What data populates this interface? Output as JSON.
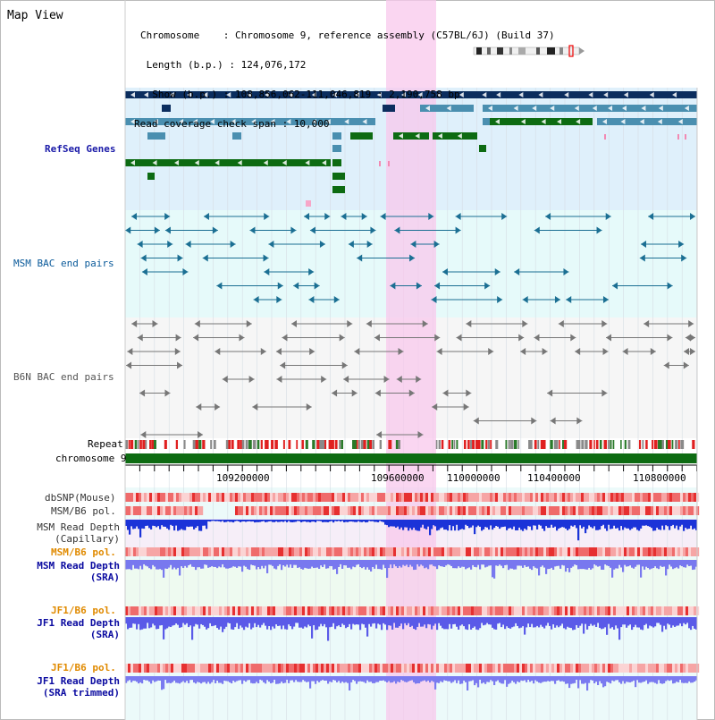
{
  "window": {
    "title": "Map View"
  },
  "info": {
    "chromosome": "Chromosome    : Chromosome 9, reference assembly (C57BL/6J) (Build 37)",
    "length": " Length (b.p.) : 124,076,172",
    "show": "  Show (b.p.) : 108,856,062-111,046,819 : 2,190,758 bp",
    "span": "Read coverage check span : 10,000"
  },
  "tracks": {
    "refseq": "RefSeq Genes",
    "msm_bac": "MSM BAC end pairs",
    "b6n_bac": "B6N BAC end pairs",
    "repeat": "Repeat",
    "chromosome": "chromosome 9",
    "dbsnp": "dbSNP(Mouse)",
    "msm_b6_pol_1": "MSM/B6 pol.",
    "msm_depth_cap_1": "MSM Read Depth",
    "msm_depth_cap_2": "(Capillary)",
    "msm_b6_pol_2": "MSM/B6 pol.",
    "msm_depth_sra_1": "MSM Read Depth",
    "msm_depth_sra_2": "(SRA)",
    "jf1_b6_pol_1": "JF1/B6 pol.",
    "jf1_depth_1": "JF1 Read Depth",
    "jf1_depth_2": "(SRA)",
    "jf1_b6_pol_2": "JF1/B6 pol.",
    "jf1_trim_1": "JF1 Read Depth",
    "jf1_trim_2": "(SRA trimmed)"
  },
  "axis": {
    "ticks": [
      "109200000",
      "109600000",
      "110000000",
      "110400000",
      "110800000"
    ]
  },
  "colors": {
    "navy": "#0b2d5e",
    "steel": "#4a8fb0",
    "green": "#0d6b12",
    "refseq_bg": "#dff0fb",
    "bac_bg": "#e6fafa",
    "highlight": "#f8c8ec",
    "pol_label": "#e08a00",
    "depth_label": "#0a0aa0",
    "msm_label": "#0a5a9a"
  }
}
